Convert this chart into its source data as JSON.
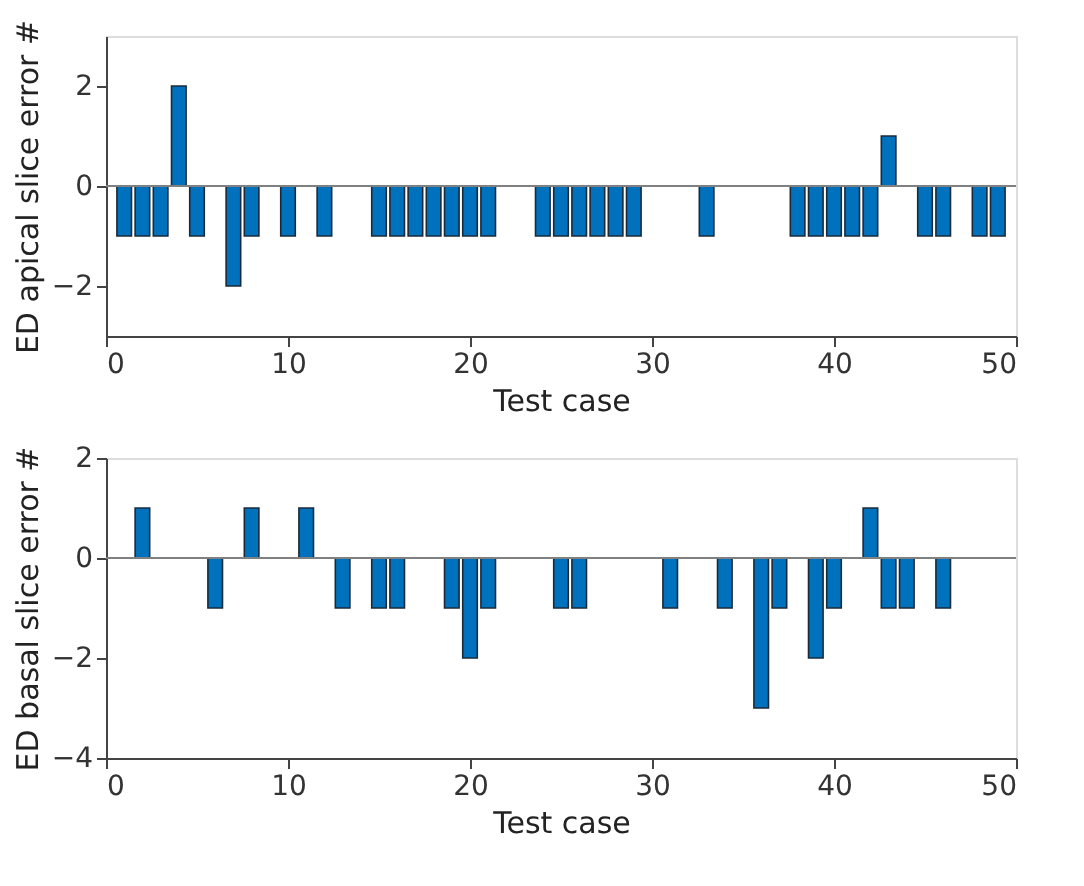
{
  "chart_data": [
    {
      "type": "bar",
      "xlabel": "Test case",
      "ylabel": "ED apical slice error #",
      "x": [
        1,
        2,
        3,
        4,
        5,
        7,
        8,
        10,
        12,
        15,
        16,
        17,
        18,
        19,
        20,
        21,
        24,
        25,
        26,
        27,
        28,
        29,
        33,
        38,
        39,
        40,
        41,
        42,
        43,
        45,
        46,
        48,
        49
      ],
      "series": [
        {
          "color": "#0072bd",
          "values": [
            -1,
            -1,
            -1,
            2,
            -1,
            -2,
            -1,
            -1,
            -1,
            -1,
            -1,
            -1,
            -1,
            -1,
            -1,
            -1,
            -1,
            -1,
            -1,
            -1,
            -1,
            -1,
            -1,
            -1,
            -1,
            -1,
            -1,
            -1,
            1,
            -1,
            -1,
            -1,
            -1
          ]
        }
      ],
      "xlim": [
        0,
        50
      ],
      "xticks": [
        0,
        10,
        20,
        30,
        40,
        50
      ],
      "ylim": [
        -3,
        3
      ],
      "yticks": [
        -2,
        0,
        2
      ],
      "ref_lines": [
        {
          "axis": "y",
          "value": 0,
          "color": "#808080"
        }
      ],
      "grid": false
    },
    {
      "type": "bar",
      "xlabel": "Test case",
      "ylabel": "ED basal slice error #",
      "x": [
        2,
        6,
        8,
        11,
        13,
        15,
        16,
        19,
        20,
        21,
        25,
        26,
        31,
        34,
        36,
        37,
        39,
        40,
        42,
        43,
        44,
        46
      ],
      "series": [
        {
          "color": "#0072bd",
          "values": [
            1,
            -1,
            1,
            1,
            -1,
            -1,
            -1,
            -1,
            -2,
            -1,
            -1,
            -1,
            -1,
            -1,
            -3,
            -1,
            -2,
            -1,
            1,
            -1,
            -1,
            -1
          ]
        }
      ],
      "xlim": [
        0,
        50
      ],
      "xticks": [
        0,
        10,
        20,
        30,
        40,
        50
      ],
      "ylim": [
        -4,
        2
      ],
      "yticks": [
        -4,
        -2,
        0,
        2
      ],
      "ref_lines": [
        {
          "axis": "y",
          "value": 0,
          "color": "#808080"
        }
      ],
      "grid": false
    }
  ]
}
